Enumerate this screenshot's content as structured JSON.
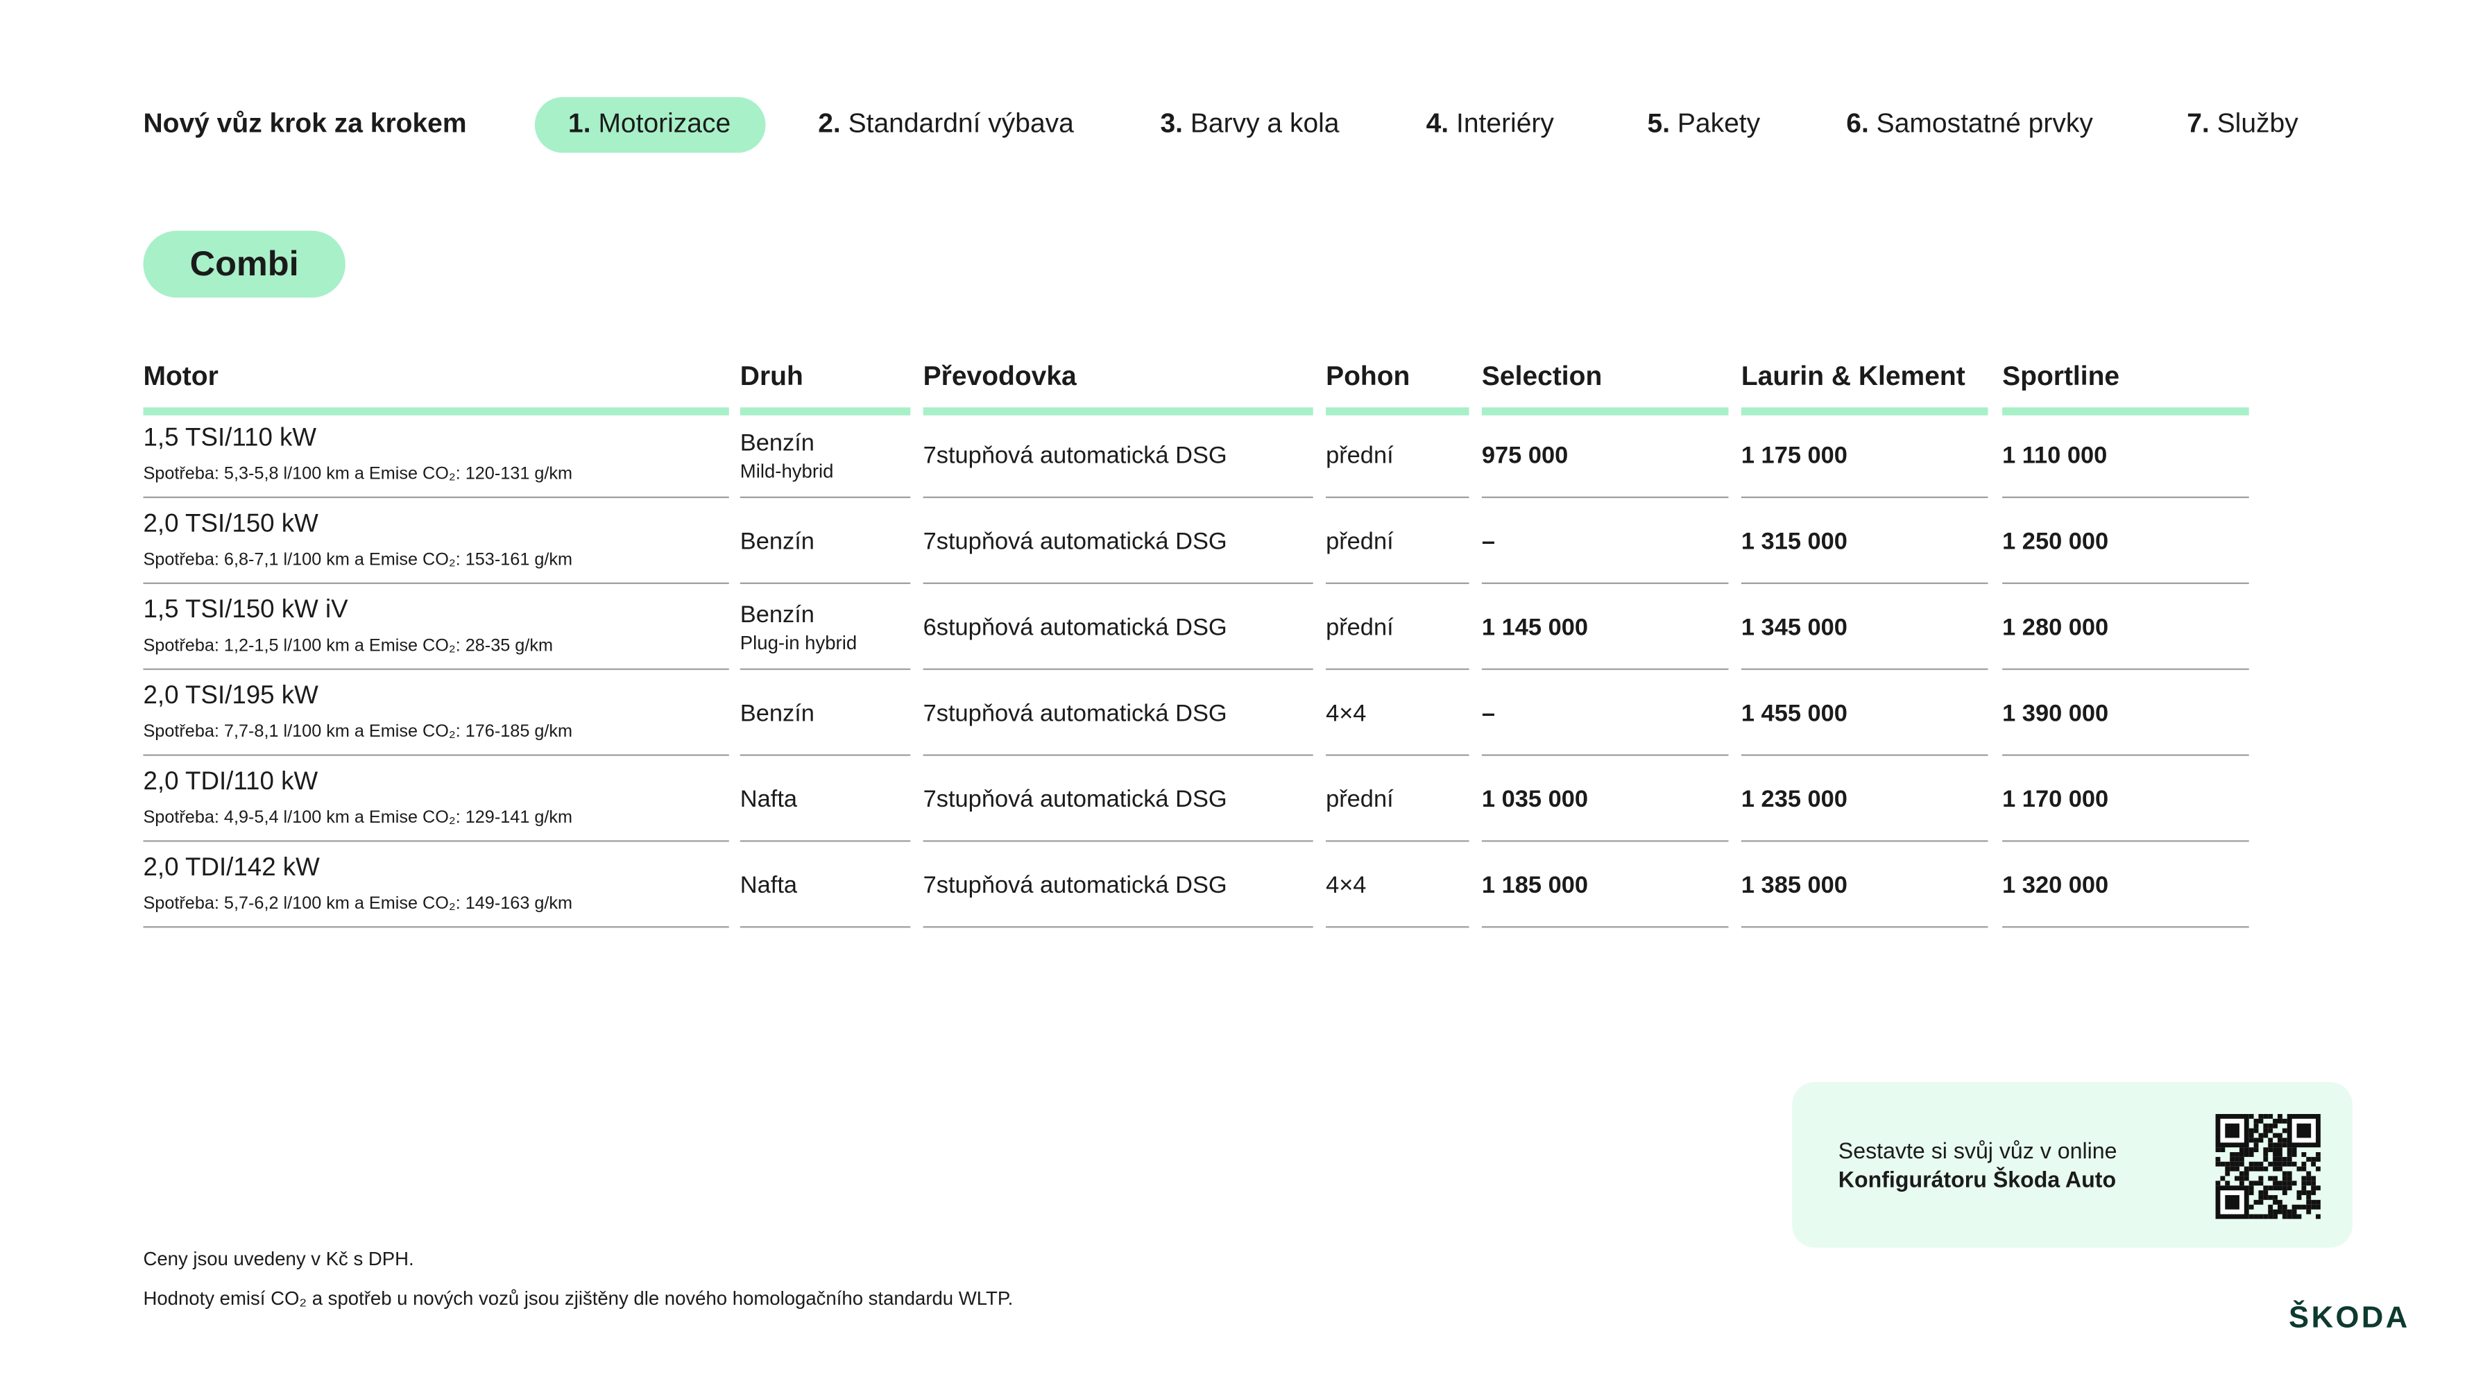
{
  "header": {
    "title": "Nový vůz krok za krokem",
    "steps": [
      {
        "number": "1.",
        "label": "Motorizace"
      },
      {
        "number": "2.",
        "label": "Standardní výbava"
      },
      {
        "number": "3.",
        "label": "Barvy a kola"
      },
      {
        "number": "4.",
        "label": "Interiéry"
      },
      {
        "number": "5.",
        "label": "Pakety"
      },
      {
        "number": "6.",
        "label": "Samostatné prvky"
      },
      {
        "number": "7.",
        "label": "Služby"
      }
    ]
  },
  "section": "Combi",
  "table": {
    "headers": [
      "Motor",
      "Druh",
      "Převodovka",
      "Pohon",
      "Selection",
      "Laurin & Klement",
      "Sportline"
    ],
    "rows": [
      {
        "motor": "1,5 TSI/110 kW",
        "consumption": "Spotřeba: 5,3-5,8 l/100 km a Emise CO₂: 120-131 g/km",
        "fuel": "Benzín",
        "fuel_note": "Mild-hybrid",
        "gearbox": "7stupňová automatická DSG",
        "drive": "přední",
        "prices": [
          "975 000",
          "1 175 000",
          "1 110 000"
        ]
      },
      {
        "motor": "2,0 TSI/150 kW",
        "consumption": "Spotřeba: 6,8-7,1 l/100 km a Emise CO₂: 153-161 g/km",
        "fuel": "Benzín",
        "gearbox": "7stupňová automatická DSG",
        "drive": "přední",
        "prices": [
          "–",
          "1 315 000",
          "1 250 000"
        ]
      },
      {
        "motor": "1,5 TSI/150 kW iV",
        "consumption": "Spotřeba: 1,2-1,5 l/100 km a Emise CO₂: 28-35 g/km",
        "fuel": "Benzín",
        "fuel_note": "Plug-in hybrid",
        "gearbox": "6stupňová automatická DSG",
        "drive": "přední",
        "prices": [
          "1 145 000",
          "1 345 000",
          "1 280 000"
        ]
      },
      {
        "motor": "2,0 TSI/195 kW",
        "consumption": "Spotřeba: 7,7-8,1 l/100 km a Emise CO₂: 176-185 g/km",
        "fuel": "Benzín",
        "gearbox": "7stupňová automatická DSG",
        "drive": "4×4",
        "prices": [
          "–",
          "1 455 000",
          "1 390 000"
        ]
      },
      {
        "motor": "2,0 TDI/110 kW",
        "consumption": "Spotřeba: 4,9-5,4 l/100 km a Emise CO₂: 129-141 g/km",
        "fuel": "Nafta",
        "gearbox": "7stupňová automatická DSG",
        "drive": "přední",
        "prices": [
          "1 035 000",
          "1 235 000",
          "1 170 000"
        ]
      },
      {
        "motor": "2,0 TDI/142 kW",
        "consumption": "Spotřeba: 5,7-6,2 l/100 km a Emise CO₂: 149-163 g/km",
        "fuel": "Nafta",
        "gearbox": "7stupňová automatická DSG",
        "drive": "4×4",
        "prices": [
          "1 185 000",
          "1 385 000",
          "1 320 000"
        ]
      }
    ]
  },
  "footnotes": [
    "Ceny jsou uvedeny v Kč s DPH.",
    "Hodnoty emisí CO₂ a spotřeb u nových vozů jsou zjištěny dle nového homologačního standardu WLTP."
  ],
  "promo": {
    "line1": "Sestavte si svůj vůz v online",
    "line2": "Konfigurátoru Škoda Auto"
  },
  "logo": "ŠKODA"
}
